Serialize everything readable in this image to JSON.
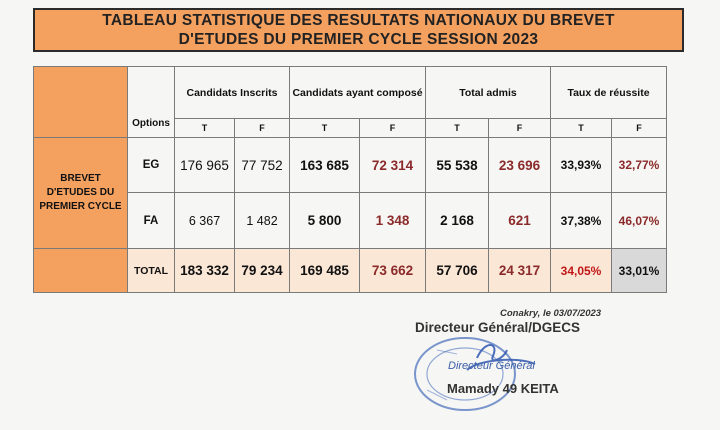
{
  "title": "TABLEAU STATISTIQUE DES RESULTATS NATIONAUX  DU BREVET\nD'ETUDES DU PREMIER CYCLE SESSION 2023",
  "table": {
    "options_header": "Options",
    "group_headers": [
      "Candidats Inscrits",
      "Candidats ayant composé",
      "Total admis",
      "Taux de réussite"
    ],
    "sub_headers": [
      "T",
      "F",
      "T",
      "F",
      "T",
      "F",
      "T",
      "F"
    ],
    "row_group_label": "BREVET D'ETUDES DU PREMIER CYCLE",
    "rows": [
      {
        "option": "EG",
        "values": [
          "176 965",
          "77 752",
          "163 685",
          "72 314",
          "55 538",
          "23 696",
          "33,93%",
          "32,77%"
        ]
      },
      {
        "option": "FA",
        "values": [
          "6 367",
          "1 482",
          "5 800",
          "1 348",
          "2 168",
          "621",
          "37,38%",
          "46,07%"
        ]
      }
    ],
    "total": {
      "label": "TOTAL",
      "values": [
        "183 332",
        "79 234",
        "169 485",
        "73 662",
        "57 706",
        "24 317",
        "34,05%",
        "33,01%"
      ]
    }
  },
  "footer": {
    "place_date": "Conakry,  le 03/07/2023",
    "signature_title": "Directeur Général/DGECS",
    "stamp_text": "Directeur Général",
    "signer_name": "Mamady 49 KEITA"
  },
  "colors": {
    "header_fill": "#f4a160",
    "female_values": "#8b2a2a",
    "highlight_red": "#c21717",
    "stamp_blue": "#3b5ea8"
  }
}
